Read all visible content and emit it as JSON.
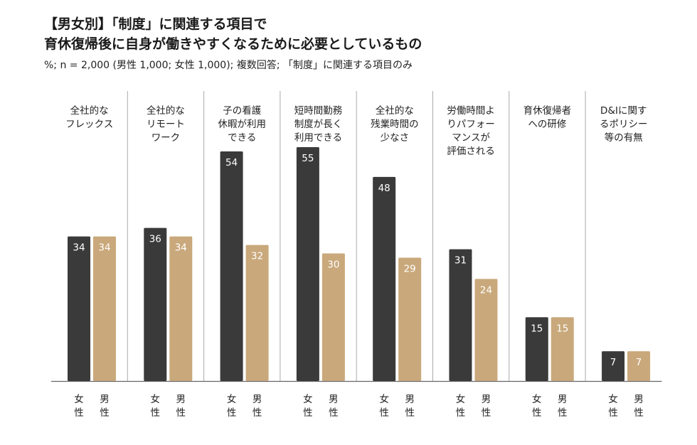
{
  "header": {
    "title_line1": "【男女別】「制度」に関連する項目で",
    "title_line2": "育休復帰後に自身が働きやすくなるために必要としているもの",
    "subtitle": "%; n = 2,000 (男性 1,000; 女性 1,000); 複数回答; 「制度」に関連する項目のみ"
  },
  "colors": {
    "female": "#3a3a3a",
    "male": "#c9a87b",
    "separator": "#aaaaaa",
    "baseline": "#666666"
  },
  "chart_data": {
    "type": "bar",
    "title": "【男女別】「制度」に関連する項目で 育休復帰後に自身が働きやすくなるために必要としているもの",
    "ylabel": "%",
    "ylim": [
      0,
      60
    ],
    "grid": false,
    "categories": [
      [
        "全社的な",
        "フレックス"
      ],
      [
        "全社的な",
        "リモート",
        "ワーク"
      ],
      [
        "子の看護",
        "休暇が利用",
        "できる"
      ],
      [
        "短時間勤務",
        "制度が長く",
        "利用できる"
      ],
      [
        "全社的な",
        "残業時間の",
        "少なさ"
      ],
      [
        "労働時間よ",
        "りパフォー",
        "マンスが",
        "評価される"
      ],
      [
        "育休復帰者",
        "への研修"
      ],
      [
        "D&Iに関す",
        "るポリシー",
        "等の有無"
      ]
    ],
    "series": [
      {
        "name": [
          "女",
          "性"
        ],
        "values": [
          34,
          36,
          54,
          55,
          48,
          31,
          15,
          7
        ]
      },
      {
        "name": [
          "男",
          "性"
        ],
        "values": [
          34,
          34,
          32,
          30,
          29,
          24,
          15,
          7
        ]
      }
    ]
  }
}
